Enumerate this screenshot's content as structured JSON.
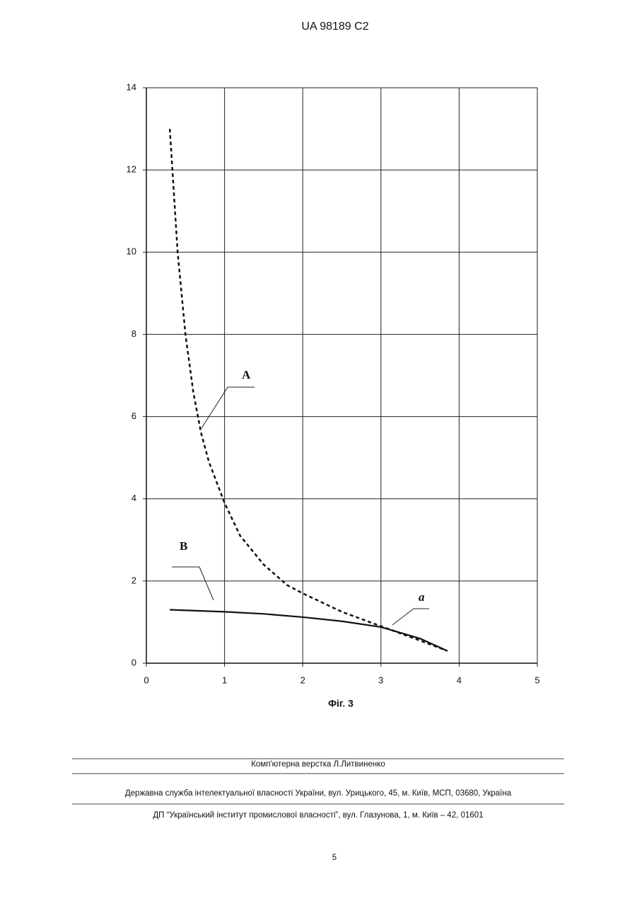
{
  "header": {
    "title": "UA   98189   C2"
  },
  "chart_data": {
    "type": "line",
    "caption": "Фіг. 3",
    "xlim": [
      0,
      5
    ],
    "xticks": [
      0,
      1,
      2,
      3,
      4,
      5
    ],
    "ylim": [
      0,
      14
    ],
    "yticks": [
      0,
      2,
      4,
      6,
      8,
      10,
      12,
      14
    ],
    "grid": true,
    "series": [
      {
        "name": "A",
        "color": "#111111",
        "dashed": true,
        "x": [
          0.3,
          0.4,
          0.5,
          0.6,
          0.7,
          0.8,
          1.0,
          1.2,
          1.5,
          1.8,
          2.0,
          2.5,
          3.0,
          3.5,
          3.85
        ],
        "values": [
          13,
          10,
          8,
          6.6,
          5.6,
          4.9,
          3.9,
          3.1,
          2.4,
          1.9,
          1.7,
          1.25,
          0.9,
          0.55,
          0.3
        ]
      },
      {
        "name": "B",
        "color": "#111111",
        "dashed": false,
        "x": [
          0.3,
          1.0,
          1.5,
          2.0,
          2.5,
          3.0,
          3.5,
          3.85
        ],
        "values": [
          1.3,
          1.25,
          1.2,
          1.12,
          1.02,
          0.88,
          0.6,
          0.3
        ]
      }
    ],
    "annotations": [
      "a"
    ]
  },
  "footer": {
    "lines": [
      "Комп'ютерна верстка Л.Литвиненко",
      "Державна служба інтелектуальної власності України, вул. Урицького, 45, м. Київ, МСП, 03680, Україна",
      "ДП “Український інститут промислової власності”, вул. Глазунова, 1, м. Київ – 42, 01601"
    ],
    "page": "5"
  }
}
